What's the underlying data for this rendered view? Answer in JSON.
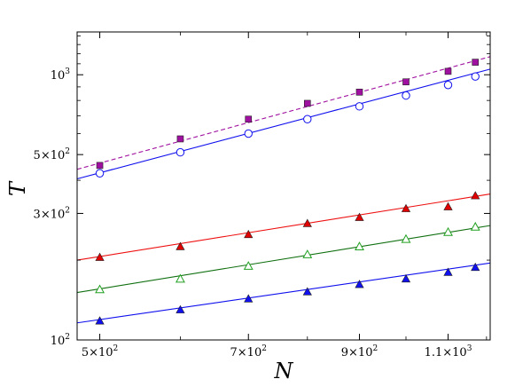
{
  "chart_data": {
    "type": "scatter",
    "xlabel": "N",
    "ylabel": "T",
    "xscale": "log",
    "yscale": "log",
    "xlim": [
      475,
      1210
    ],
    "ylim": [
      100,
      1450
    ],
    "grid": false,
    "legend": "none",
    "x_ticks": [
      {
        "value": 500,
        "label": "5×10",
        "exp": "2"
      },
      {
        "value": 700,
        "label": "7×10",
        "exp": "2"
      },
      {
        "value": 900,
        "label": "9×10",
        "exp": "2"
      },
      {
        "value": 1100,
        "label": "1.1×10",
        "exp": "3"
      }
    ],
    "y_ticks": [
      {
        "value": 100,
        "label": "10",
        "exp": "2"
      },
      {
        "value": 300,
        "label": "3×10",
        "exp": "2"
      },
      {
        "value": 500,
        "label": "5×10",
        "exp": "2"
      },
      {
        "value": 1000,
        "label": "10",
        "exp": "3"
      }
    ],
    "series": [
      {
        "marker": "square",
        "filled": true,
        "color": "#a010a0",
        "line_color": "#a010a0",
        "dashed": true,
        "x": [
          500,
          600,
          700,
          800,
          900,
          1000,
          1100,
          1170
        ],
        "y": [
          455,
          573,
          680,
          780,
          860,
          940,
          1030,
          1115
        ],
        "fit": [
          [
            475,
            440
          ],
          [
            1210,
            1170
          ]
        ]
      },
      {
        "marker": "circle",
        "filled": false,
        "color": "#1010ee",
        "line_color": "#1010ee",
        "dashed": false,
        "x": [
          500,
          600,
          700,
          800,
          900,
          1000,
          1100,
          1170
        ],
        "y": [
          425,
          510,
          600,
          680,
          760,
          835,
          915,
          985
        ],
        "fit": [
          [
            475,
            405
          ],
          [
            1210,
            1050
          ]
        ]
      },
      {
        "marker": "triangle",
        "filled": true,
        "color": "#e00000",
        "line_color": "#ee1010",
        "dashed": false,
        "x": [
          500,
          600,
          700,
          800,
          900,
          1000,
          1100,
          1170
        ],
        "y": [
          205,
          225,
          250,
          275,
          290,
          313,
          318,
          350
        ],
        "fit": [
          [
            475,
            200
          ],
          [
            1210,
            355
          ]
        ]
      },
      {
        "marker": "triangle",
        "filled": false,
        "color": "#20a020",
        "line_color": "#107010",
        "dashed": false,
        "x": [
          500,
          600,
          700,
          800,
          900,
          1000,
          1100,
          1170
        ],
        "y": [
          155,
          170,
          190,
          210,
          225,
          240,
          255,
          267
        ],
        "fit": [
          [
            475,
            151
          ],
          [
            1210,
            270
          ]
        ]
      },
      {
        "marker": "triangle",
        "filled": true,
        "color": "#1010ee",
        "line_color": "#1010ee",
        "dashed": false,
        "x": [
          500,
          600,
          700,
          800,
          900,
          1000,
          1100,
          1170
        ],
        "y": [
          118,
          130,
          143,
          152,
          162,
          170,
          180,
          188
        ],
        "fit": [
          [
            475,
            116
          ],
          [
            1210,
            195
          ]
        ]
      }
    ]
  }
}
